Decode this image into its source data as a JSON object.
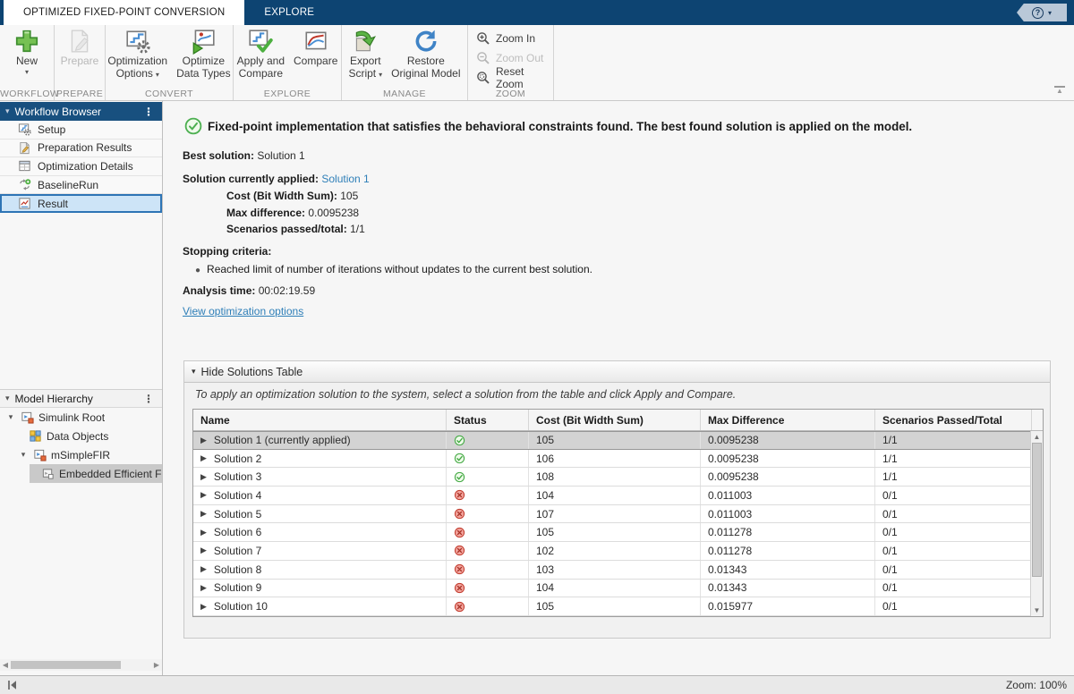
{
  "tabs": [
    {
      "label": "OPTIMIZED FIXED-POINT CONVERSION",
      "active": true
    },
    {
      "label": "EXPLORE",
      "active": false
    }
  ],
  "help": {
    "icon": "question-icon"
  },
  "toolbar": {
    "groups": [
      {
        "label": "WORKFLOW",
        "type": "large",
        "buttons": [
          {
            "lines": [
              "New"
            ],
            "icon": "new-plus-icon",
            "dropdown": true,
            "dropdown_below": true,
            "enabled": true
          }
        ]
      },
      {
        "label": "PREPARE",
        "type": "large",
        "buttons": [
          {
            "lines": [
              "Prepare"
            ],
            "icon": "prepare-icon",
            "dropdown": false,
            "enabled": false
          }
        ]
      },
      {
        "label": "CONVERT",
        "type": "large",
        "buttons": [
          {
            "lines": [
              "Optimization",
              "Options"
            ],
            "icon": "optimization-options-icon",
            "dropdown": true,
            "enabled": true
          },
          {
            "lines": [
              "Optimize",
              "Data Types"
            ],
            "icon": "optimize-data-types-icon",
            "dropdown": false,
            "enabled": true
          }
        ]
      },
      {
        "label": "EXPLORE",
        "type": "large",
        "buttons": [
          {
            "lines": [
              "Apply and",
              "Compare"
            ],
            "icon": "apply-and-compare-icon",
            "dropdown": false,
            "enabled": true
          },
          {
            "lines": [
              "Compare"
            ],
            "icon": "compare-icon",
            "dropdown": false,
            "enabled": true
          }
        ]
      },
      {
        "label": "MANAGE",
        "type": "large",
        "buttons": [
          {
            "lines": [
              "Export",
              "Script"
            ],
            "icon": "export-script-icon",
            "dropdown": true,
            "enabled": true
          },
          {
            "lines": [
              "Restore",
              "Original Model"
            ],
            "icon": "restore-original-model-icon",
            "dropdown": false,
            "enabled": true
          }
        ]
      },
      {
        "label": "ZOOM",
        "type": "small",
        "buttons": [
          {
            "lines": [
              "Zoom In"
            ],
            "icon": "zoom-in-icon",
            "enabled": true
          },
          {
            "lines": [
              "Zoom Out"
            ],
            "icon": "zoom-out-icon",
            "enabled": false
          },
          {
            "lines": [
              "Reset Zoom"
            ],
            "icon": "reset-zoom-icon",
            "enabled": true
          }
        ]
      }
    ]
  },
  "workflow_browser": {
    "title": "Workflow Browser",
    "items": [
      {
        "label": "Setup",
        "icon": "setup-icon",
        "selected": false
      },
      {
        "label": "Preparation Results",
        "icon": "preparation-results-icon",
        "selected": false
      },
      {
        "label": "Optimization Details",
        "icon": "optimization-details-icon",
        "selected": false
      },
      {
        "label": "BaselineRun",
        "icon": "baseline-run-icon",
        "selected": false
      },
      {
        "label": "Result",
        "icon": "result-icon",
        "selected": true
      }
    ]
  },
  "model_hierarchy": {
    "title": "Model Hierarchy",
    "nodes": [
      {
        "label": "Simulink Root",
        "icon": "simulink-root-icon",
        "depth": 0,
        "expander": true,
        "selected": false
      },
      {
        "label": "Data Objects",
        "icon": "data-objects-icon",
        "depth": 1,
        "expander": false,
        "selected": false
      },
      {
        "label": "mSimpleFIR",
        "icon": "model-icon",
        "depth": 1,
        "expander": true,
        "selected": false
      },
      {
        "label": "Embedded Efficient Fil",
        "icon": "subsystem-icon",
        "depth": 2,
        "expander": false,
        "selected": true
      }
    ]
  },
  "result": {
    "heading": "Fixed-point implementation that satisfies the behavioral constraints found. The best found solution is applied on the model.",
    "status_icon": "check-circle-icon",
    "best_solution_label": "Best solution:",
    "best_solution_value": "Solution 1",
    "applied_label": "Solution currently applied:",
    "applied_value": "Solution 1",
    "cost_label": "Cost (Bit Width Sum):",
    "cost_value": "105",
    "maxdiff_label": "Max difference:",
    "maxdiff_value": "0.0095238",
    "scenarios_label": "Scenarios passed/total:",
    "scenarios_value": "1/1",
    "stopping_label": "Stopping criteria:",
    "stopping_bullet": "Reached limit of number of iterations without updates to the current best solution.",
    "analysis_label": "Analysis time:",
    "analysis_value": "00:02:19.59",
    "view_options_link": "View optimization options"
  },
  "solutions": {
    "toggle_label": "Hide Solutions Table",
    "instruction": "To apply an optimization solution to the system, select a solution from the table and click Apply and Compare.",
    "columns": [
      "Name",
      "Status",
      "Cost (Bit Width Sum)",
      "Max Difference",
      "Scenarios Passed/Total"
    ],
    "rows": [
      {
        "name": "Solution 1 (currently applied)",
        "status": "pass",
        "cost": "105",
        "max_difference": "0.0095238",
        "scenarios": "1/1",
        "selected": true
      },
      {
        "name": "Solution 2",
        "status": "pass",
        "cost": "106",
        "max_difference": "0.0095238",
        "scenarios": "1/1",
        "selected": false
      },
      {
        "name": "Solution 3",
        "status": "pass",
        "cost": "108",
        "max_difference": "0.0095238",
        "scenarios": "1/1",
        "selected": false
      },
      {
        "name": "Solution 4",
        "status": "fail",
        "cost": "104",
        "max_difference": "0.011003",
        "scenarios": "0/1",
        "selected": false
      },
      {
        "name": "Solution 5",
        "status": "fail",
        "cost": "107",
        "max_difference": "0.011003",
        "scenarios": "0/1",
        "selected": false
      },
      {
        "name": "Solution 6",
        "status": "fail",
        "cost": "105",
        "max_difference": "0.011278",
        "scenarios": "0/1",
        "selected": false
      },
      {
        "name": "Solution 7",
        "status": "fail",
        "cost": "102",
        "max_difference": "0.011278",
        "scenarios": "0/1",
        "selected": false
      },
      {
        "name": "Solution 8",
        "status": "fail",
        "cost": "103",
        "max_difference": "0.01343",
        "scenarios": "0/1",
        "selected": false
      },
      {
        "name": "Solution 9",
        "status": "fail",
        "cost": "104",
        "max_difference": "0.01343",
        "scenarios": "0/1",
        "selected": false
      },
      {
        "name": "Solution 10",
        "status": "fail",
        "cost": "105",
        "max_difference": "0.015977",
        "scenarios": "0/1",
        "selected": false
      }
    ],
    "status_icons": {
      "pass": "pass-icon",
      "fail": "fail-icon"
    }
  },
  "statusbar": {
    "zoom_label": "Zoom: 100%"
  },
  "colors": {
    "titlebar_blue": "#0d4472",
    "panel_header_blue": "#18507f",
    "link_blue": "#2e7fb8",
    "pass_green": "#3fa73f",
    "fail_red": "#c0392b",
    "selection_blue": "#2d74b5"
  }
}
